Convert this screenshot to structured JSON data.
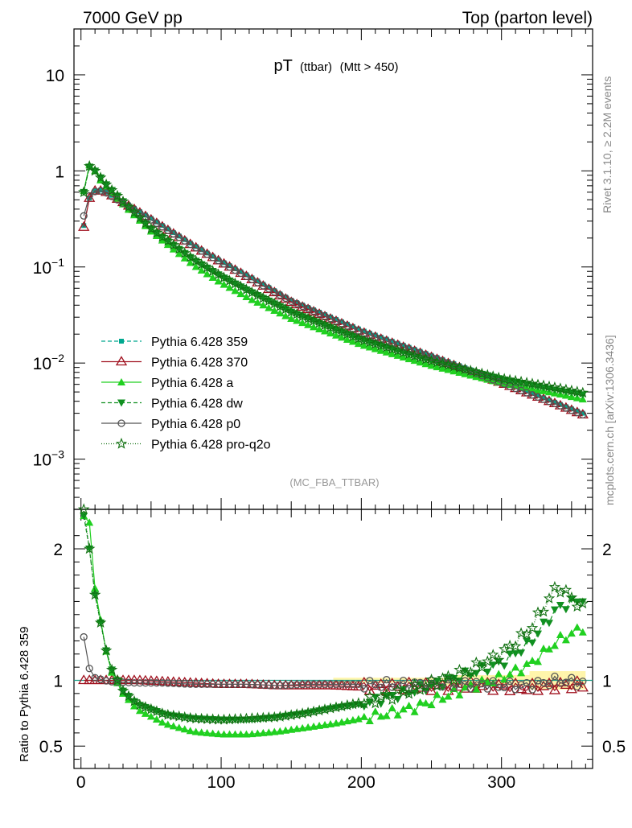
{
  "header": {
    "left": "7000 GeV pp",
    "right": "Top (parton level)"
  },
  "side_texts": {
    "rivet": "Rivet 3.1.10, ≥ 2.2M events",
    "mcplots": "mcplots.cern.ch [arXiv:1306.3436]"
  },
  "chart_data": [
    {
      "type": "line",
      "title_main": "pT",
      "title_sub": "(ttbar)",
      "title_cut": "(Mtt > 450)",
      "analysis_id": "(MC_FBA_TTBAR)",
      "xlabel": "",
      "ylabel": "",
      "yscale": "log",
      "xlim": [
        -5,
        365
      ],
      "ylim": [
        0.0003,
        30
      ],
      "y_ticks": [
        {
          "base": "10",
          "exp": "",
          "value": 10
        },
        {
          "base": "1",
          "exp": "",
          "value": 1
        },
        {
          "base": "10",
          "exp": "−1",
          "value": 0.1
        },
        {
          "base": "10",
          "exp": "−2",
          "value": 0.01
        },
        {
          "base": "10",
          "exp": "−3",
          "value": 0.001
        }
      ],
      "legend_position": "lower-left",
      "series": [
        {
          "name": "Pythia 6.428 359",
          "color": "#00a88f",
          "marker": "square",
          "dash": "5,3",
          "x": [
            2,
            6,
            10,
            14,
            18,
            30,
            50,
            80,
            100,
            120,
            150,
            200,
            250,
            300,
            340,
            358
          ],
          "y": [
            0.27,
            0.52,
            0.62,
            0.63,
            0.6,
            0.48,
            0.32,
            0.17,
            0.115,
            0.08,
            0.045,
            0.022,
            0.012,
            0.0065,
            0.0038,
            0.003
          ]
        },
        {
          "name": "Pythia 6.428 370",
          "color": "#a0101e",
          "marker": "triangle-open",
          "dash": "",
          "x": [
            2,
            6,
            10,
            14,
            18,
            30,
            50,
            80,
            100,
            120,
            150,
            200,
            250,
            300,
            340,
            358
          ],
          "y": [
            0.26,
            0.52,
            0.62,
            0.62,
            0.6,
            0.47,
            0.31,
            0.165,
            0.112,
            0.077,
            0.043,
            0.021,
            0.0115,
            0.0062,
            0.0037,
            0.0029
          ]
        },
        {
          "name": "Pythia 6.428 a",
          "color": "#20d020",
          "marker": "triangle",
          "dash": "",
          "x": [
            2,
            6,
            10,
            14,
            18,
            30,
            50,
            80,
            100,
            120,
            150,
            200,
            250,
            300,
            340,
            358
          ],
          "y": [
            0.62,
            1.15,
            1.0,
            0.8,
            0.68,
            0.45,
            0.235,
            0.105,
            0.068,
            0.047,
            0.029,
            0.0155,
            0.0094,
            0.0062,
            0.0048,
            0.0042
          ]
        },
        {
          "name": "Pythia 6.428 dw",
          "color": "#109020",
          "marker": "triangle-down",
          "dash": "5,3",
          "x": [
            2,
            6,
            10,
            14,
            18,
            30,
            50,
            80,
            100,
            120,
            150,
            200,
            250,
            300,
            340,
            358
          ],
          "y": [
            0.6,
            1.1,
            1.0,
            0.85,
            0.72,
            0.48,
            0.25,
            0.12,
            0.08,
            0.056,
            0.034,
            0.0175,
            0.0105,
            0.0068,
            0.0052,
            0.0047
          ]
        },
        {
          "name": "Pythia 6.428 p0",
          "color": "#555555",
          "marker": "circle-open",
          "dash": "",
          "x": [
            2,
            6,
            10,
            14,
            18,
            30,
            50,
            80,
            100,
            120,
            150,
            200,
            250,
            300,
            340,
            358
          ],
          "y": [
            0.34,
            0.55,
            0.61,
            0.62,
            0.59,
            0.46,
            0.31,
            0.165,
            0.112,
            0.077,
            0.044,
            0.021,
            0.0116,
            0.0062,
            0.0037,
            0.0029
          ]
        },
        {
          "name": "Pythia 6.428 pro-q2o",
          "color": "#107010",
          "marker": "star",
          "dash": "1,2",
          "x": [
            2,
            6,
            10,
            14,
            18,
            30,
            50,
            80,
            100,
            120,
            150,
            200,
            250,
            300,
            340,
            358
          ],
          "y": [
            0.6,
            1.12,
            1.0,
            0.85,
            0.72,
            0.48,
            0.25,
            0.12,
            0.08,
            0.056,
            0.034,
            0.0175,
            0.0105,
            0.0069,
            0.0055,
            0.0049
          ]
        }
      ]
    },
    {
      "type": "line",
      "ylabel": "Ratio to Pythia 6.428 359",
      "xlabel": "",
      "xlim": [
        -5,
        365
      ],
      "ylim": [
        0.33,
        2.3
      ],
      "x_ticks": [
        0,
        100,
        200,
        300
      ],
      "y_ticks": [
        0.5,
        1,
        2
      ],
      "reference_line": 1,
      "series": [
        {
          "name": "Pythia 6.428 370",
          "color": "#a0101e",
          "marker": "triangle-open",
          "dash": "",
          "x": [
            2,
            6,
            10,
            20,
            40,
            60,
            80,
            100,
            120,
            140,
            160,
            180,
            200,
            220,
            240,
            260,
            280,
            300,
            320,
            340,
            358
          ],
          "y": [
            1.0,
            1.0,
            1.0,
            1.0,
            1.0,
            0.99,
            0.98,
            0.97,
            0.97,
            0.96,
            0.96,
            0.96,
            0.95,
            0.95,
            0.95,
            0.95,
            0.96,
            0.95,
            0.94,
            0.96,
            0.96
          ]
        },
        {
          "name": "Pythia 6.428 a",
          "color": "#20d020",
          "marker": "triangle",
          "dash": "",
          "x": [
            2,
            6,
            10,
            20,
            30,
            40,
            60,
            80,
            100,
            120,
            140,
            160,
            180,
            200,
            220,
            240,
            260,
            280,
            300,
            320,
            340,
            358
          ],
          "y": [
            2.25,
            2.2,
            1.7,
            1.1,
            0.9,
            0.78,
            0.67,
            0.61,
            0.59,
            0.59,
            0.61,
            0.64,
            0.67,
            0.71,
            0.75,
            0.8,
            0.88,
            0.96,
            1.02,
            1.12,
            1.3,
            1.4
          ]
        },
        {
          "name": "Pythia 6.428 dw",
          "color": "#109020",
          "marker": "triangle-down",
          "dash": "5,3",
          "x": [
            2,
            6,
            10,
            20,
            30,
            40,
            60,
            80,
            100,
            120,
            140,
            160,
            180,
            200,
            220,
            240,
            260,
            280,
            300,
            320,
            340,
            358
          ],
          "y": [
            2.25,
            2.0,
            1.65,
            1.12,
            0.92,
            0.82,
            0.74,
            0.71,
            0.7,
            0.7,
            0.72,
            0.75,
            0.79,
            0.82,
            0.87,
            0.93,
            0.99,
            1.06,
            1.13,
            1.28,
            1.55,
            1.62
          ]
        },
        {
          "name": "Pythia 6.428 p0",
          "color": "#555555",
          "marker": "circle-open",
          "dash": "",
          "x": [
            2,
            6,
            10,
            20,
            40,
            60,
            80,
            100,
            120,
            140,
            160,
            180,
            200,
            220,
            240,
            260,
            280,
            300,
            320,
            340,
            358
          ],
          "y": [
            1.33,
            1.09,
            1.02,
            0.99,
            0.98,
            0.98,
            0.97,
            0.97,
            0.97,
            0.96,
            0.97,
            0.97,
            0.97,
            0.97,
            0.97,
            0.97,
            0.97,
            0.96,
            0.96,
            1.0,
            0.98
          ]
        },
        {
          "name": "Pythia 6.428 pro-q2o",
          "color": "#107010",
          "marker": "star",
          "dash": "1,2",
          "x": [
            2,
            6,
            10,
            20,
            30,
            40,
            60,
            80,
            100,
            120,
            140,
            160,
            180,
            200,
            220,
            240,
            260,
            280,
            300,
            320,
            340,
            358
          ],
          "y": [
            2.3,
            2.0,
            1.65,
            1.12,
            0.92,
            0.82,
            0.74,
            0.71,
            0.7,
            0.71,
            0.72,
            0.75,
            0.79,
            0.83,
            0.88,
            0.94,
            1.01,
            1.09,
            1.2,
            1.38,
            1.72,
            1.55
          ]
        }
      ]
    }
  ]
}
